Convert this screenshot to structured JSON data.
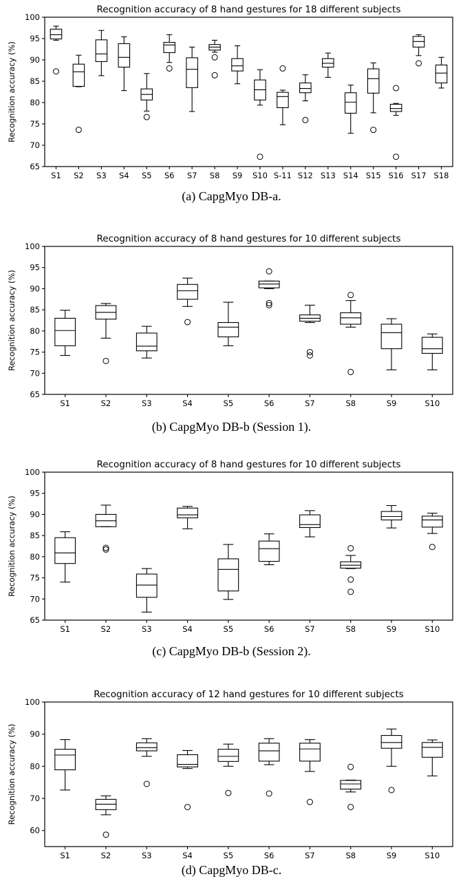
{
  "chart_data": [
    {
      "type": "box",
      "title": "Recognition accuracy of 8 hand gestures for 18 different subjects",
      "ylabel": "Recognition accuracy (%)",
      "caption": "(a) CapgMyo DB-a.",
      "ylim": [
        65,
        100
      ],
      "yticks": [
        65,
        70,
        75,
        80,
        85,
        90,
        95,
        100
      ],
      "categories": [
        "S1",
        "S2",
        "S3",
        "S4",
        "S5",
        "S6",
        "S7",
        "S8",
        "S9",
        "S10",
        "S-11",
        "S12",
        "S13",
        "S14",
        "S15",
        "S16",
        "S17",
        "S18"
      ],
      "boxes": [
        {
          "whislo": 94.6,
          "q1": 94.9,
          "med": 95.9,
          "q3": 97.2,
          "whishi": 97.9,
          "fliers": [
            87.3
          ]
        },
        {
          "whislo": 83.7,
          "q1": 83.8,
          "med": 87.2,
          "q3": 89.0,
          "whishi": 91.1,
          "fliers": [
            73.6
          ]
        },
        {
          "whislo": 86.3,
          "q1": 89.6,
          "med": 91.4,
          "q3": 94.7,
          "whishi": 96.9,
          "fliers": []
        },
        {
          "whislo": 82.8,
          "q1": 88.3,
          "med": 90.6,
          "q3": 93.8,
          "whishi": 95.4,
          "fliers": []
        },
        {
          "whislo": 78.0,
          "q1": 80.6,
          "med": 81.9,
          "q3": 83.2,
          "whishi": 86.8,
          "fliers": [
            76.6
          ]
        },
        {
          "whislo": 89.4,
          "q1": 91.7,
          "med": 93.5,
          "q3": 94.1,
          "whishi": 95.9,
          "fliers": [
            88.0
          ]
        },
        {
          "whislo": 77.9,
          "q1": 83.5,
          "med": 87.8,
          "q3": 90.5,
          "whishi": 93.0,
          "fliers": []
        },
        {
          "whislo": 91.8,
          "q1": 92.3,
          "med": 93.0,
          "q3": 93.6,
          "whishi": 94.6,
          "fliers": [
            90.6,
            86.4
          ]
        },
        {
          "whislo": 84.4,
          "q1": 87.4,
          "med": 88.6,
          "q3": 90.3,
          "whishi": 93.3,
          "fliers": []
        },
        {
          "whislo": 79.4,
          "q1": 80.6,
          "med": 83.0,
          "q3": 85.3,
          "whishi": 87.7,
          "fliers": [
            67.3
          ]
        },
        {
          "whislo": 74.8,
          "q1": 78.8,
          "med": 81.4,
          "q3": 82.4,
          "whishi": 82.9,
          "fliers": [
            88.0
          ]
        },
        {
          "whislo": 80.4,
          "q1": 82.3,
          "med": 83.3,
          "q3": 84.6,
          "whishi": 86.5,
          "fliers": [
            75.9
          ]
        },
        {
          "whislo": 85.9,
          "q1": 88.3,
          "med": 89.2,
          "q3": 90.3,
          "whishi": 91.6,
          "fliers": []
        },
        {
          "whislo": 72.8,
          "q1": 77.5,
          "med": 80.1,
          "q3": 82.3,
          "whishi": 84.1,
          "fliers": []
        },
        {
          "whislo": 77.6,
          "q1": 82.2,
          "med": 85.6,
          "q3": 87.9,
          "whishi": 89.3,
          "fliers": [
            73.6
          ]
        },
        {
          "whislo": 77.0,
          "q1": 77.9,
          "med": 78.6,
          "q3": 79.6,
          "whishi": 79.8,
          "fliers": [
            83.4,
            67.3
          ]
        },
        {
          "whislo": 91.0,
          "q1": 93.0,
          "med": 94.3,
          "q3": 95.5,
          "whishi": 95.9,
          "fliers": [
            89.2
          ]
        },
        {
          "whislo": 83.4,
          "q1": 84.6,
          "med": 86.9,
          "q3": 88.8,
          "whishi": 90.6,
          "fliers": []
        }
      ]
    },
    {
      "type": "box",
      "title": "Recognition accuracy of 8 hand gestures for 10 different subjects",
      "ylabel": "Recognition accuracy (%)",
      "caption": "(b) CapgMyo DB-b (Session 1).",
      "ylim": [
        65,
        100
      ],
      "yticks": [
        65,
        70,
        75,
        80,
        85,
        90,
        95,
        100
      ],
      "categories": [
        "S1",
        "S2",
        "S3",
        "S4",
        "S5",
        "S6",
        "S7",
        "S8",
        "S9",
        "S10"
      ],
      "boxes": [
        {
          "whislo": 74.2,
          "q1": 76.5,
          "med": 80.1,
          "q3": 83.0,
          "whishi": 84.9,
          "fliers": []
        },
        {
          "whislo": 78.3,
          "q1": 82.8,
          "med": 84.4,
          "q3": 86.0,
          "whishi": 86.5,
          "fliers": [
            72.9
          ]
        },
        {
          "whislo": 73.6,
          "q1": 75.3,
          "med": 76.4,
          "q3": 79.5,
          "whishi": 81.1,
          "fliers": []
        },
        {
          "whislo": 85.8,
          "q1": 87.5,
          "med": 89.5,
          "q3": 91.0,
          "whishi": 92.5,
          "fliers": [
            82.1
          ]
        },
        {
          "whislo": 76.5,
          "q1": 78.6,
          "med": 80.9,
          "q3": 82.0,
          "whishi": 86.8,
          "fliers": []
        },
        {
          "whislo": 90.0,
          "q1": 90.2,
          "med": 91.1,
          "q3": 91.8,
          "whishi": 91.8,
          "fliers": [
            94.1,
            86.6,
            86.1
          ]
        },
        {
          "whislo": 82.0,
          "q1": 82.3,
          "med": 83.0,
          "q3": 83.8,
          "whishi": 86.1,
          "fliers": [
            75.0,
            74.2
          ]
        },
        {
          "whislo": 80.9,
          "q1": 81.6,
          "med": 83.1,
          "q3": 84.3,
          "whishi": 87.2,
          "fliers": [
            88.5,
            70.3
          ]
        },
        {
          "whislo": 70.8,
          "q1": 75.8,
          "med": 79.6,
          "q3": 81.6,
          "whishi": 82.9,
          "fliers": []
        },
        {
          "whislo": 70.8,
          "q1": 74.7,
          "med": 75.8,
          "q3": 78.5,
          "whishi": 79.3,
          "fliers": []
        }
      ]
    },
    {
      "type": "box",
      "title": "Recognition accuracy of 8 hand gestures for 10 different subjects",
      "ylabel": "Recognition accuracy (%)",
      "caption": "(c) CapgMyo DB-b (Session 2).",
      "ylim": [
        65,
        100
      ],
      "yticks": [
        65,
        70,
        75,
        80,
        85,
        90,
        95,
        100
      ],
      "categories": [
        "S1",
        "S2",
        "S3",
        "S4",
        "S5",
        "S6",
        "S7",
        "S8",
        "S9",
        "S10"
      ],
      "boxes": [
        {
          "whislo": 74.0,
          "q1": 78.4,
          "med": 80.9,
          "q3": 84.5,
          "whishi": 85.9,
          "fliers": []
        },
        {
          "whislo": 87.1,
          "q1": 87.1,
          "med": 88.5,
          "q3": 90.0,
          "whishi": 92.2,
          "fliers": [
            82.1,
            81.7
          ]
        },
        {
          "whislo": 66.9,
          "q1": 70.4,
          "med": 73.3,
          "q3": 75.9,
          "whishi": 77.2,
          "fliers": []
        },
        {
          "whislo": 86.6,
          "q1": 89.2,
          "med": 89.9,
          "q3": 91.5,
          "whishi": 91.9,
          "fliers": []
        },
        {
          "whislo": 69.9,
          "q1": 71.9,
          "med": 77.0,
          "q3": 79.5,
          "whishi": 82.9,
          "fliers": []
        },
        {
          "whislo": 78.1,
          "q1": 78.9,
          "med": 81.9,
          "q3": 83.7,
          "whishi": 85.4,
          "fliers": []
        },
        {
          "whislo": 84.7,
          "q1": 86.9,
          "med": 87.6,
          "q3": 89.9,
          "whishi": 90.9,
          "fliers": []
        },
        {
          "whislo": 77.2,
          "q1": 77.3,
          "med": 78.0,
          "q3": 78.8,
          "whishi": 80.3,
          "fliers": [
            82.0,
            74.6,
            71.7
          ]
        },
        {
          "whislo": 86.8,
          "q1": 88.7,
          "med": 89.5,
          "q3": 90.7,
          "whishi": 92.1,
          "fliers": []
        },
        {
          "whislo": 85.5,
          "q1": 87.0,
          "med": 88.7,
          "q3": 89.6,
          "whishi": 90.3,
          "fliers": [
            82.3
          ]
        }
      ]
    },
    {
      "type": "box",
      "title": "Recognition accuracy of 12 hand gestures for 10 different subjects",
      "ylabel": "Recognition accuracy (%)",
      "caption": "(d) CapgMyo DB-c.",
      "ylim": [
        55,
        100
      ],
      "yticks": [
        60,
        70,
        80,
        90,
        100
      ],
      "categories": [
        "S1",
        "S2",
        "S3",
        "S4",
        "S5",
        "S6",
        "S7",
        "S8",
        "S9",
        "S10"
      ],
      "boxes": [
        {
          "whislo": 72.6,
          "q1": 78.9,
          "med": 83.5,
          "q3": 85.3,
          "whishi": 88.3,
          "fliers": []
        },
        {
          "whislo": 64.9,
          "q1": 66.5,
          "med": 68.2,
          "q3": 69.7,
          "whishi": 70.8,
          "fliers": [
            58.7
          ]
        },
        {
          "whislo": 83.1,
          "q1": 84.8,
          "med": 85.8,
          "q3": 87.3,
          "whishi": 88.6,
          "fliers": [
            74.5
          ]
        },
        {
          "whislo": 79.3,
          "q1": 79.8,
          "med": 80.6,
          "q3": 83.6,
          "whishi": 84.9,
          "fliers": [
            67.3
          ]
        },
        {
          "whislo": 80.0,
          "q1": 81.5,
          "med": 83.1,
          "q3": 85.3,
          "whishi": 86.9,
          "fliers": [
            71.7
          ]
        },
        {
          "whislo": 80.5,
          "q1": 81.6,
          "med": 84.8,
          "q3": 87.2,
          "whishi": 88.6,
          "fliers": [
            71.5
          ]
        },
        {
          "whislo": 78.4,
          "q1": 81.6,
          "med": 85.4,
          "q3": 87.2,
          "whishi": 88.3,
          "fliers": [
            68.9
          ]
        },
        {
          "whislo": 72.0,
          "q1": 72.9,
          "med": 74.5,
          "q3": 75.6,
          "whishi": 75.7,
          "fliers": [
            79.8,
            67.3
          ]
        },
        {
          "whislo": 80.0,
          "q1": 85.6,
          "med": 87.4,
          "q3": 89.6,
          "whishi": 91.6,
          "fliers": [
            72.6
          ]
        },
        {
          "whislo": 77.0,
          "q1": 82.8,
          "med": 85.9,
          "q3": 87.4,
          "whishi": 88.2,
          "fliers": []
        }
      ]
    }
  ]
}
